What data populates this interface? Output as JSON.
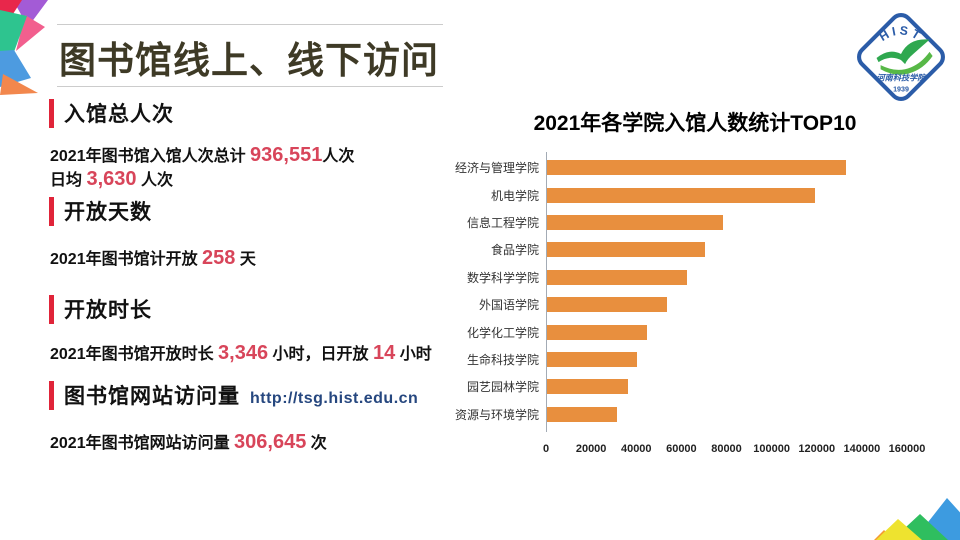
{
  "slide": {
    "title": "图书馆线上、线下访问"
  },
  "logo": {
    "acronym": "HIST",
    "school_name": "河南科技学院",
    "year": "1939"
  },
  "sections": [
    {
      "heading": "入馆总人次",
      "lines": [
        [
          {
            "t": "2021年图书馆入馆人次总计 "
          },
          {
            "t": "936,551",
            "em": true
          },
          {
            "t": "人次"
          }
        ],
        [
          {
            "t": "日均 "
          },
          {
            "t": "3,630",
            "em": true
          },
          {
            "t": " 人次"
          }
        ]
      ]
    },
    {
      "heading": "开放天数",
      "lines": [
        [
          {
            "t": "2021年图书馆计开放 "
          },
          {
            "t": "258",
            "em": true
          },
          {
            "t": " 天"
          }
        ]
      ]
    },
    {
      "heading": "开放时长",
      "lines": [
        [
          {
            "t": "2021年图书馆开放时长 "
          },
          {
            "t": "3,346",
            "em": true
          },
          {
            "t": " 小时，日开放 "
          },
          {
            "t": "14",
            "em": true
          },
          {
            "t": " 小时"
          }
        ]
      ]
    },
    {
      "heading": "图书馆网站访问量",
      "heading_link": "http://tsg.hist.edu.cn",
      "lines": [
        [
          {
            "t": "2021年图书馆网站访问量 "
          },
          {
            "t": "306,645",
            "em": true
          },
          {
            "t": " 次"
          }
        ]
      ]
    }
  ],
  "chart_data": {
    "type": "bar",
    "orientation": "horizontal",
    "title": "2021年各学院入馆人数统计TOP10",
    "categories": [
      "经济与管理学院",
      "机电学院",
      "信息工程学院",
      "食品学院",
      "数学科学学院",
      "外国语学院",
      "化学化工学院",
      "生命科技学院",
      "园艺园林学院",
      "资源与环境学院"
    ],
    "values": [
      132500,
      119000,
      78000,
      70000,
      62000,
      53000,
      44500,
      40000,
      36000,
      31000
    ],
    "xlabel": "",
    "ylabel": "",
    "xlim": [
      0,
      160000
    ],
    "x_ticks": [
      0,
      20000,
      40000,
      60000,
      80000,
      100000,
      120000,
      140000,
      160000
    ],
    "grid": false,
    "legend": "none",
    "bar_color": "#e88f3e"
  },
  "colors": {
    "title_text": "#3e3a26",
    "accent_bar": "#e02439",
    "stat_number": "#d8455a",
    "url_blue": "#26477f",
    "bar_orange": "#e88f3e",
    "logo_blue": "#2b5ca8",
    "logo_green": "#2fa84f"
  }
}
